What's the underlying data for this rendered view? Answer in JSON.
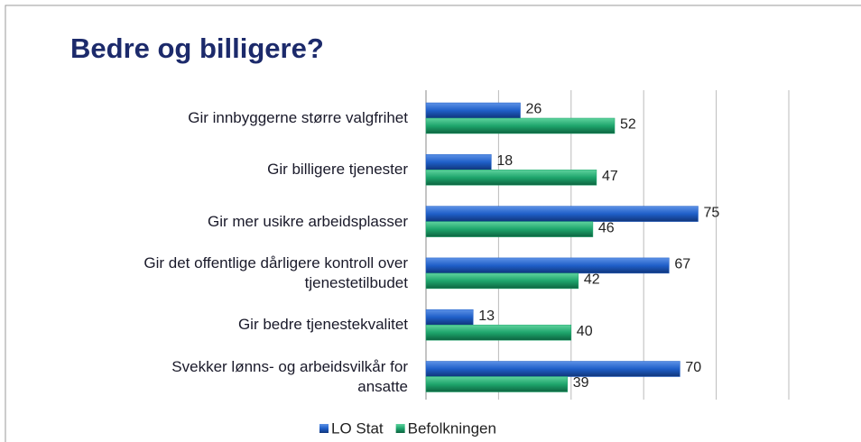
{
  "chart_data": {
    "type": "bar",
    "orientation": "horizontal",
    "title": "Bedre og billigere?",
    "categories": [
      "Gir innbyggerne større valgfrihet",
      "Gir billigere tjenester",
      "Gir mer usikre arbeidsplasser",
      "Gir det offentlige dårligere kontroll over\ntjenestetilbudet",
      "Gir bedre tjenestekvalitet",
      "Svekker lønns- og arbeidsvilkår for\nansatte"
    ],
    "series": [
      {
        "name": "LO Stat",
        "color": "#1f5fc8",
        "values": [
          26,
          18,
          75,
          67,
          13,
          70
        ]
      },
      {
        "name": "Befolkningen",
        "color": "#1ea56c",
        "values": [
          52,
          47,
          46,
          42,
          40,
          39
        ]
      }
    ],
    "xlim": [
      0,
      100
    ],
    "xticks": [
      0,
      20,
      40,
      60,
      80,
      100
    ],
    "grid": true,
    "legend": "bottom"
  }
}
